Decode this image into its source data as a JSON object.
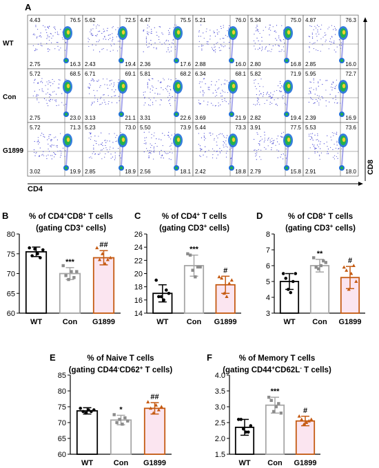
{
  "panel_a": {
    "letter": "A",
    "row_labels": [
      "WT",
      "Con",
      "G1899"
    ],
    "x_axis_label": "CD4",
    "y_axis_label": "CD8",
    "plots": [
      [
        {
          "ul": "4.43",
          "ur": "76.5",
          "ll": "2.75",
          "lr": "16.3"
        },
        {
          "ul": "5.62",
          "ur": "72.5",
          "ll": "2.43",
          "lr": "19.4"
        },
        {
          "ul": "4.47",
          "ur": "75.5",
          "ll": "2.36",
          "lr": "17.6"
        },
        {
          "ul": "5.21",
          "ur": "76.0",
          "ll": "2.88",
          "lr": "16.0"
        },
        {
          "ul": "5.34",
          "ur": "75.0",
          "ll": "2.80",
          "lr": "16.8"
        },
        {
          "ul": "4.87",
          "ur": "76.3",
          "ll": "2.85",
          "lr": "16.0"
        }
      ],
      [
        {
          "ul": "5.72",
          "ur": "68.5",
          "ll": "2.75",
          "lr": "23.0"
        },
        {
          "ul": "6.71",
          "ur": "69.1",
          "ll": "3.13",
          "lr": "21.1"
        },
        {
          "ul": "5.81",
          "ur": "68.2",
          "ll": "3.31",
          "lr": "22.6"
        },
        {
          "ul": "6.34",
          "ur": "68.1",
          "ll": "3.69",
          "lr": "21.9"
        },
        {
          "ul": "5.82",
          "ur": "71.9",
          "ll": "2.82",
          "lr": "19.4"
        },
        {
          "ul": "5.95",
          "ur": "72.7",
          "ll": "2.39",
          "lr": "16.9"
        }
      ],
      [
        {
          "ul": "5.72",
          "ur": "71.3",
          "ll": "3.02",
          "lr": "19.9"
        },
        {
          "ul": "5.23",
          "ur": "73.0",
          "ll": "2.85",
          "lr": "18.9"
        },
        {
          "ul": "5.50",
          "ur": "73.9",
          "ll": "2.56",
          "lr": "18.1"
        },
        {
          "ul": "5.44",
          "ur": "73.3",
          "ll": "2.42",
          "lr": "18.8"
        },
        {
          "ul": "3.91",
          "ur": "77.5",
          "ll": "2.79",
          "lr": "15.8"
        },
        {
          "ul": "5.53",
          "ur": "73.6",
          "ll": "2.91",
          "lr": "18.0"
        }
      ]
    ]
  },
  "chart_data": [
    {
      "id": "B",
      "type": "bar",
      "letter": "B",
      "title_parts": [
        [
          "% of CD4",
          ""
        ],
        [
          "+",
          "sup"
        ],
        [
          "CD8",
          ""
        ],
        [
          "+",
          "sup"
        ],
        [
          " T cells",
          ""
        ]
      ],
      "subtitle_parts": [
        [
          "(gating CD3",
          ""
        ],
        [
          "+",
          "sup"
        ],
        [
          " cells)",
          ""
        ]
      ],
      "categories": [
        "WT",
        "Con",
        "G1899"
      ],
      "values": [
        75.5,
        70.0,
        74.0
      ],
      "errors": [
        1.2,
        1.5,
        1.8
      ],
      "points": [
        [
          76.5,
          74.5,
          76.2,
          75.0,
          74.0,
          76.0
        ],
        [
          72.0,
          69.5,
          68.5,
          70.5,
          69.0,
          70.5
        ],
        [
          76.5,
          73.5,
          75.0,
          72.5,
          73.5,
          74.0
        ]
      ],
      "markers": [
        "circle",
        "square",
        "triangle"
      ],
      "significance": [
        "",
        "***",
        "##"
      ],
      "ylim": [
        60,
        80
      ],
      "yticks": [
        60,
        65,
        70,
        75,
        80
      ]
    },
    {
      "id": "C",
      "type": "bar",
      "letter": "C",
      "title_parts": [
        [
          "% of  CD4",
          ""
        ],
        [
          "+",
          "sup"
        ],
        [
          "  T cells",
          ""
        ]
      ],
      "subtitle_parts": [
        [
          "(gating CD3",
          ""
        ],
        [
          "+",
          "sup"
        ],
        [
          " cells)",
          ""
        ]
      ],
      "categories": [
        "WT",
        "Con",
        "G1899"
      ],
      "values": [
        17.0,
        21.2,
        18.3
      ],
      "errors": [
        1.3,
        1.6,
        1.3
      ],
      "points": [
        [
          19.0,
          16.5,
          16.5,
          16.0,
          17.5,
          17.0
        ],
        [
          23.0,
          22.8,
          20.5,
          19.5,
          21.0,
          21.0
        ],
        [
          19.5,
          19.3,
          17.0,
          16.5,
          18.5,
          19.0
        ]
      ],
      "markers": [
        "circle",
        "square",
        "triangle"
      ],
      "significance": [
        "",
        "***",
        "#"
      ],
      "ylim": [
        14,
        26
      ],
      "yticks": [
        14,
        16,
        18,
        20,
        22,
        24,
        26
      ]
    },
    {
      "id": "D",
      "type": "bar",
      "letter": "D",
      "title_parts": [
        [
          "% of CD8",
          ""
        ],
        [
          "+",
          "sup"
        ],
        [
          "  T cells",
          ""
        ]
      ],
      "subtitle_parts": [
        [
          "(gating CD3",
          ""
        ],
        [
          "+",
          "sup"
        ],
        [
          " cells)",
          ""
        ]
      ],
      "categories": [
        "WT",
        "Con",
        "G1899"
      ],
      "values": [
        5.0,
        6.0,
        5.25
      ],
      "errors": [
        0.5,
        0.4,
        0.7
      ],
      "points": [
        [
          5.5,
          5.2,
          4.5,
          4.3,
          5.0,
          5.5
        ],
        [
          6.5,
          5.9,
          5.8,
          6.0,
          6.3,
          6.2
        ],
        [
          5.9,
          5.7,
          4.5,
          5.5,
          6.0,
          5.0
        ]
      ],
      "markers": [
        "circle",
        "square",
        "triangle"
      ],
      "significance": [
        "",
        "**",
        "#"
      ],
      "ylim": [
        3,
        8
      ],
      "yticks": [
        3,
        4,
        5,
        6,
        7,
        8
      ]
    },
    {
      "id": "E",
      "type": "bar",
      "letter": "E",
      "title_parts": [
        [
          "% of Naive T cells",
          ""
        ]
      ],
      "subtitle_parts": [
        [
          "(gating CD44",
          ""
        ],
        [
          "-",
          "sup"
        ],
        [
          "CD62",
          ""
        ],
        [
          "+",
          "sup"
        ],
        [
          " T cells)",
          ""
        ]
      ],
      "categories": [
        "WT",
        "Con",
        "G1899"
      ],
      "values": [
        73.7,
        70.8,
        74.5
      ],
      "errors": [
        1.0,
        1.5,
        1.8
      ],
      "points": [
        [
          74.5,
          73.5,
          73.0,
          74.0,
          73.5,
          74.0
        ],
        [
          72.5,
          70.0,
          71.0,
          69.5,
          71.5,
          70.5
        ],
        [
          76.5,
          74.5,
          73.0,
          75.5,
          74.0,
          75.0
        ]
      ],
      "markers": [
        "circle",
        "square",
        "triangle"
      ],
      "significance": [
        "",
        "*",
        "##"
      ],
      "ylim": [
        60,
        85
      ],
      "yticks": [
        60,
        65,
        70,
        75,
        80,
        85
      ]
    },
    {
      "id": "F",
      "type": "bar",
      "letter": "F",
      "title_parts": [
        [
          "% of Memory T cells",
          ""
        ]
      ],
      "subtitle_parts": [
        [
          "(gating CD44",
          ""
        ],
        [
          "+",
          "sup"
        ],
        [
          "CD62L",
          ""
        ],
        [
          "-",
          "sup"
        ],
        [
          " T cells)",
          ""
        ]
      ],
      "categories": [
        "WT",
        "Con",
        "G1899"
      ],
      "values": [
        2.35,
        3.05,
        2.55
      ],
      "errors": [
        0.25,
        0.25,
        0.15
      ],
      "points": [
        [
          2.6,
          2.6,
          2.3,
          2.2,
          2.2,
          2.4
        ],
        [
          3.3,
          3.2,
          2.85,
          3.0,
          3.1,
          2.8
        ],
        [
          2.7,
          2.6,
          2.45,
          2.5,
          2.55,
          2.6
        ]
      ],
      "markers": [
        "circle",
        "square",
        "triangle"
      ],
      "significance": [
        "",
        "***",
        "#"
      ],
      "ylim": [
        1.5,
        4.0
      ],
      "yticks": [
        "1.5",
        "2.0",
        "2.5",
        "3.0",
        "3.5",
        "4.0"
      ]
    }
  ],
  "colors": {
    "wt_edge": "#000000",
    "con_edge": "#a6a6a6",
    "g1899_edge": "#c55a11",
    "g1899_fill": "#fbe5f0",
    "wt_points": "#000000",
    "con_points": "#8c8c8c",
    "g1899_points": "#c55a11"
  }
}
